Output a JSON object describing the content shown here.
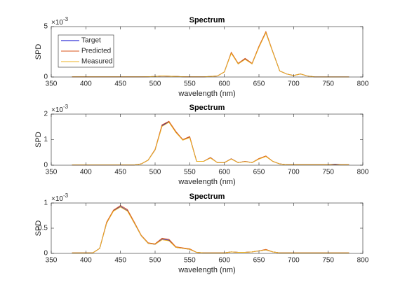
{
  "chart_data": [
    {
      "type": "line",
      "title": "Spectrum",
      "xlabel": "wavelength (nm)",
      "ylabel": "SPD",
      "exponent_base": "×10",
      "exponent": "-3",
      "x": [
        380,
        390,
        400,
        410,
        420,
        430,
        440,
        450,
        460,
        470,
        480,
        490,
        500,
        510,
        520,
        530,
        540,
        550,
        560,
        570,
        580,
        590,
        600,
        610,
        620,
        630,
        640,
        650,
        660,
        670,
        680,
        690,
        700,
        710,
        720,
        730,
        740,
        750,
        760,
        770,
        780
      ],
      "series": [
        {
          "name": "Target",
          "color": "#0000cc",
          "values": [
            0.02,
            0.02,
            0.02,
            0.02,
            0.02,
            0.02,
            0.02,
            0.02,
            0.02,
            0.02,
            0.02,
            0.03,
            0.05,
            0.1,
            0.08,
            0.05,
            0.03,
            0.02,
            0.02,
            0.02,
            0.05,
            0.1,
            0.5,
            2.4,
            1.3,
            1.8,
            1.3,
            3.0,
            4.4,
            2.5,
            0.6,
            0.3,
            0.15,
            0.3,
            0.1,
            0.02,
            0.01,
            0.01,
            0.01,
            0.01,
            0.01
          ]
        },
        {
          "name": "Predicted",
          "color": "#d95319",
          "values": [
            0.02,
            0.02,
            0.02,
            0.02,
            0.02,
            0.02,
            0.02,
            0.02,
            0.02,
            0.02,
            0.02,
            0.03,
            0.05,
            0.1,
            0.08,
            0.05,
            0.03,
            0.02,
            0.02,
            0.02,
            0.05,
            0.1,
            0.5,
            2.45,
            1.35,
            1.85,
            1.35,
            3.05,
            4.5,
            2.5,
            0.6,
            0.3,
            0.15,
            0.3,
            0.1,
            0.02,
            0.01,
            0.01,
            0.01,
            0.01,
            0.01
          ]
        },
        {
          "name": "Measured",
          "color": "#edb120",
          "values": [
            0.02,
            0.02,
            0.02,
            0.02,
            0.02,
            0.02,
            0.02,
            0.02,
            0.02,
            0.02,
            0.02,
            0.03,
            0.05,
            0.1,
            0.08,
            0.05,
            0.03,
            0.02,
            0.02,
            0.02,
            0.05,
            0.1,
            0.5,
            2.35,
            1.3,
            1.75,
            1.3,
            2.95,
            4.4,
            2.45,
            0.6,
            0.3,
            0.15,
            0.3,
            0.1,
            0.02,
            0.01,
            0.01,
            0.01,
            0.01,
            0.01
          ]
        }
      ],
      "xlim": [
        350,
        800
      ],
      "xticks": [
        350,
        400,
        450,
        500,
        550,
        600,
        650,
        700,
        750,
        800
      ],
      "ylim": [
        0,
        5
      ],
      "yticks": [
        0,
        5
      ],
      "legend": "northwest"
    },
    {
      "type": "line",
      "title": "Spectrum",
      "xlabel": "wavelength (nm)",
      "ylabel": "SPD",
      "exponent_base": "×10",
      "exponent": "-3",
      "x": [
        380,
        390,
        400,
        410,
        420,
        430,
        440,
        450,
        460,
        470,
        480,
        490,
        500,
        510,
        520,
        530,
        540,
        550,
        560,
        570,
        580,
        590,
        600,
        610,
        620,
        630,
        640,
        650,
        660,
        670,
        680,
        690,
        700,
        710,
        720,
        730,
        740,
        750,
        760,
        770,
        780
      ],
      "series": [
        {
          "name": "Target",
          "color": "#0000cc",
          "values": [
            0.01,
            0.01,
            0.01,
            0.01,
            0.01,
            0.01,
            0.01,
            0.01,
            0.01,
            0.01,
            0.05,
            0.2,
            0.6,
            1.55,
            1.7,
            1.3,
            1.0,
            1.1,
            0.15,
            0.15,
            0.3,
            0.1,
            0.1,
            0.25,
            0.1,
            0.15,
            0.1,
            0.25,
            0.35,
            0.15,
            0.05,
            0.02,
            0.02,
            0.02,
            0.02,
            0.02,
            0.02,
            0.02,
            0.04,
            0.02,
            0.02
          ]
        },
        {
          "name": "Predicted",
          "color": "#d95319",
          "values": [
            0.01,
            0.01,
            0.01,
            0.01,
            0.01,
            0.01,
            0.01,
            0.01,
            0.01,
            0.01,
            0.05,
            0.2,
            0.62,
            1.58,
            1.72,
            1.32,
            1.0,
            1.12,
            0.15,
            0.15,
            0.3,
            0.1,
            0.1,
            0.25,
            0.1,
            0.15,
            0.1,
            0.26,
            0.36,
            0.15,
            0.05,
            0.02,
            0.02,
            0.02,
            0.02,
            0.02,
            0.02,
            0.02,
            0.02,
            0.02,
            0.02
          ]
        },
        {
          "name": "Measured",
          "color": "#edb120",
          "values": [
            0.01,
            0.01,
            0.01,
            0.01,
            0.01,
            0.01,
            0.01,
            0.01,
            0.01,
            0.01,
            0.05,
            0.2,
            0.6,
            1.52,
            1.68,
            1.28,
            0.98,
            1.08,
            0.15,
            0.15,
            0.28,
            0.1,
            0.1,
            0.24,
            0.1,
            0.14,
            0.1,
            0.24,
            0.34,
            0.15,
            0.05,
            0.02,
            0.02,
            0.02,
            0.02,
            0.02,
            0.02,
            0.02,
            0.02,
            0.02,
            0.02
          ]
        }
      ],
      "xlim": [
        350,
        800
      ],
      "xticks": [
        350,
        400,
        450,
        500,
        550,
        600,
        650,
        700,
        750,
        800
      ],
      "ylim": [
        0,
        2
      ],
      "yticks": [
        0,
        1,
        2
      ]
    },
    {
      "type": "line",
      "title": "Spectrum",
      "xlabel": "wavelength (nm)",
      "ylabel": "SPD",
      "exponent_base": "×10",
      "exponent": "-3",
      "x": [
        380,
        390,
        400,
        410,
        420,
        430,
        440,
        450,
        460,
        470,
        480,
        490,
        500,
        510,
        520,
        530,
        540,
        550,
        560,
        570,
        580,
        590,
        600,
        610,
        620,
        630,
        640,
        650,
        660,
        670,
        680,
        690,
        700,
        710,
        720,
        730,
        740,
        750,
        760,
        770,
        780
      ],
      "series": [
        {
          "name": "Target",
          "color": "#0000cc",
          "values": [
            0.01,
            0.01,
            0.01,
            0.01,
            0.1,
            0.6,
            0.85,
            0.93,
            0.85,
            0.6,
            0.35,
            0.2,
            0.18,
            0.28,
            0.26,
            0.12,
            0.1,
            0.08,
            0.02,
            0.01,
            0.01,
            0.01,
            0.01,
            0.03,
            0.02,
            0.02,
            0.03,
            0.05,
            0.07,
            0.03,
            0.01,
            0.01,
            0.01,
            0.01,
            0.01,
            0.01,
            0.01,
            0.01,
            0.01,
            0.01,
            0.01
          ]
        },
        {
          "name": "Predicted",
          "color": "#d95319",
          "values": [
            0.01,
            0.01,
            0.01,
            0.01,
            0.1,
            0.62,
            0.86,
            0.95,
            0.87,
            0.62,
            0.36,
            0.21,
            0.19,
            0.3,
            0.28,
            0.13,
            0.11,
            0.09,
            0.02,
            0.01,
            0.01,
            0.01,
            0.01,
            0.03,
            0.02,
            0.02,
            0.03,
            0.05,
            0.08,
            0.03,
            0.01,
            0.01,
            0.01,
            0.01,
            0.01,
            0.01,
            0.01,
            0.01,
            0.01,
            0.01,
            0.01
          ]
        },
        {
          "name": "Measured",
          "color": "#edb120",
          "values": [
            0.01,
            0.01,
            0.01,
            0.01,
            0.1,
            0.6,
            0.84,
            0.92,
            0.84,
            0.6,
            0.35,
            0.2,
            0.18,
            0.27,
            0.25,
            0.12,
            0.1,
            0.08,
            0.02,
            0.01,
            0.01,
            0.01,
            0.01,
            0.03,
            0.02,
            0.02,
            0.03,
            0.05,
            0.07,
            0.03,
            0.01,
            0.01,
            0.01,
            0.01,
            0.01,
            0.01,
            0.01,
            0.01,
            0.01,
            0.01,
            0.01
          ]
        }
      ],
      "xlim": [
        350,
        800
      ],
      "xticks": [
        350,
        400,
        450,
        500,
        550,
        600,
        650,
        700,
        750,
        800
      ],
      "ylim": [
        0,
        1
      ],
      "yticks": [
        0,
        0.5,
        1
      ]
    }
  ]
}
